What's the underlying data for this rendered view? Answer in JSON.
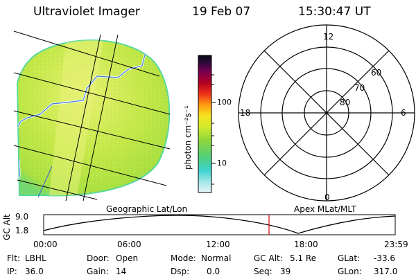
{
  "header": {
    "title": "Ultraviolet Imager",
    "date": "19 Feb 07",
    "time": "15:30:47 UT"
  },
  "colorbar": {
    "unit_label": "photon cm⁻²s⁻¹",
    "ticks": [
      "100",
      "10"
    ]
  },
  "polar_plot": {
    "mlt_labels": {
      "top": "12",
      "left": "18",
      "right": "6",
      "bottom": "0"
    },
    "lat_labels": [
      "60",
      "70",
      "80"
    ]
  },
  "altitude_strip": {
    "left_label": "Geographic Lat/Lon",
    "right_label": "Apex MLat/MLT",
    "axis_label": "GC Alt",
    "ymax": "9.0",
    "ymin": "1.8",
    "time_ticks": [
      "00:00",
      "06:00",
      "12:00",
      "18:00",
      "23:59"
    ],
    "current_marker_color": "#cc0000"
  },
  "status": {
    "filter_label": "Flt:",
    "filter_value": "LBHL",
    "door_label": "Door:",
    "door_value": "Open",
    "mode_label": "Mode:",
    "mode_value": "Normal",
    "gcalt_label": "GC Alt:",
    "gcalt_value": "5.1 Re",
    "glat_label": "GLat:",
    "glat_value": "-33.6",
    "ip_label": "IP:",
    "ip_value": "36.0",
    "gain_label": "Gain:",
    "gain_value": "14",
    "dsp_label": "Dsp:",
    "dsp_value": "0.0",
    "seq_label": "Seq:",
    "seq_value": "39",
    "glon_label": "GLon:",
    "glon_value": "317.0"
  },
  "colors": {
    "aurora_base": "#c8ec50",
    "aurora_edge": "#55d89a",
    "coast": "#3a7bd5"
  }
}
